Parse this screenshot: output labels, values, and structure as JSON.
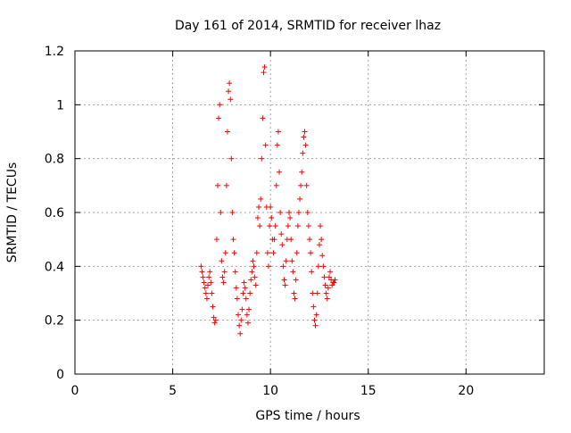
{
  "colors": {
    "background": "#ffffff",
    "axis": "#000000",
    "grid": "#a0a0a0",
    "series": "#ff0000"
  },
  "chart_data": {
    "type": "scatter",
    "title": "Day 161 of 2014, SRMTID for receiver lhaz",
    "xlabel": "GPS time / hours",
    "ylabel": "SRMTID / TECUs",
    "xlim": [
      0,
      24
    ],
    "ylim": [
      0,
      1.2
    ],
    "xticks": [
      0,
      5,
      10,
      15,
      20
    ],
    "xtick_labels": [
      "0",
      "5",
      "10",
      "15",
      "20"
    ],
    "yticks": [
      0,
      0.2,
      0.4,
      0.6,
      0.8,
      1.0,
      1.2
    ],
    "ytick_labels": [
      "0",
      "0.2",
      "0.4",
      "0.6",
      "0.8",
      "1",
      "1.2"
    ],
    "grid": true,
    "marker": "+",
    "series": [
      {
        "name": "SRMTID",
        "x": [
          6.45,
          6.5,
          6.55,
          6.6,
          6.65,
          6.7,
          6.75,
          6.8,
          6.85,
          6.9,
          6.95,
          7.0,
          7.05,
          7.1,
          7.15,
          7.2,
          7.25,
          7.3,
          7.35,
          7.4,
          7.45,
          7.5,
          7.55,
          7.6,
          7.65,
          7.7,
          7.75,
          7.8,
          7.85,
          7.9,
          7.95,
          8.0,
          8.05,
          8.1,
          8.15,
          8.2,
          8.25,
          8.3,
          8.35,
          8.4,
          8.45,
          8.5,
          8.55,
          8.6,
          8.65,
          8.7,
          8.75,
          8.8,
          8.85,
          8.9,
          8.95,
          9.0,
          9.05,
          9.1,
          9.15,
          9.2,
          9.25,
          9.3,
          9.35,
          9.4,
          9.45,
          9.5,
          9.55,
          9.6,
          9.65,
          9.7,
          9.75,
          9.8,
          9.85,
          9.9,
          9.95,
          10.0,
          10.05,
          10.1,
          10.15,
          10.2,
          10.25,
          10.3,
          10.35,
          10.4,
          10.45,
          10.5,
          10.55,
          10.6,
          10.65,
          10.7,
          10.75,
          10.8,
          10.85,
          10.9,
          10.95,
          11.0,
          11.05,
          11.1,
          11.15,
          11.2,
          11.25,
          11.3,
          11.35,
          11.4,
          11.45,
          11.5,
          11.55,
          11.6,
          11.65,
          11.7,
          11.75,
          11.8,
          11.85,
          11.9,
          11.95,
          12.0,
          12.05,
          12.1,
          12.15,
          12.2,
          12.25,
          12.3,
          12.35,
          12.4,
          12.45,
          12.5,
          12.55,
          12.6,
          12.65,
          12.7,
          12.75,
          12.8,
          12.85,
          12.9,
          12.95,
          13.0,
          13.05,
          13.1,
          13.15,
          13.2,
          13.25,
          13.3
        ],
        "y": [
          0.4,
          0.38,
          0.36,
          0.34,
          0.32,
          0.3,
          0.28,
          0.33,
          0.36,
          0.38,
          0.34,
          0.3,
          0.25,
          0.21,
          0.19,
          0.2,
          0.5,
          0.7,
          0.95,
          1.0,
          0.6,
          0.42,
          0.36,
          0.34,
          0.38,
          0.45,
          0.7,
          0.9,
          1.05,
          1.08,
          1.02,
          0.8,
          0.6,
          0.5,
          0.45,
          0.38,
          0.32,
          0.28,
          0.22,
          0.18,
          0.15,
          0.2,
          0.24,
          0.3,
          0.34,
          0.32,
          0.28,
          0.22,
          0.19,
          0.24,
          0.3,
          0.35,
          0.38,
          0.42,
          0.4,
          0.36,
          0.33,
          0.45,
          0.58,
          0.62,
          0.55,
          0.65,
          0.8,
          0.95,
          1.12,
          1.14,
          0.85,
          0.62,
          0.45,
          0.4,
          0.55,
          0.62,
          0.58,
          0.5,
          0.45,
          0.5,
          0.55,
          0.7,
          0.85,
          0.9,
          0.75,
          0.6,
          0.52,
          0.48,
          0.4,
          0.35,
          0.33,
          0.42,
          0.5,
          0.55,
          0.6,
          0.58,
          0.5,
          0.42,
          0.38,
          0.3,
          0.28,
          0.35,
          0.45,
          0.55,
          0.6,
          0.65,
          0.7,
          0.75,
          0.82,
          0.88,
          0.9,
          0.85,
          0.7,
          0.6,
          0.55,
          0.5,
          0.45,
          0.38,
          0.3,
          0.25,
          0.2,
          0.18,
          0.22,
          0.3,
          0.4,
          0.48,
          0.55,
          0.5,
          0.44,
          0.4,
          0.36,
          0.33,
          0.3,
          0.28,
          0.32,
          0.36,
          0.38,
          0.35,
          0.33,
          0.34,
          0.34,
          0.35
        ]
      }
    ]
  }
}
